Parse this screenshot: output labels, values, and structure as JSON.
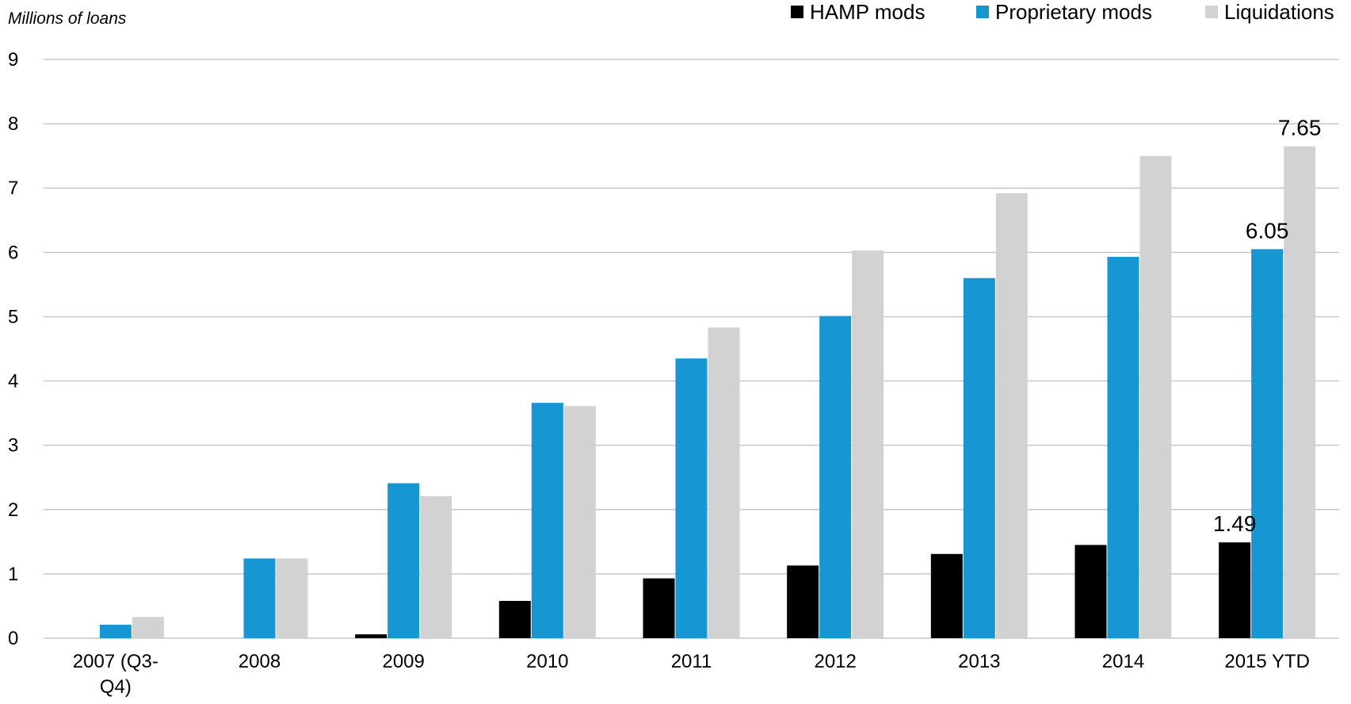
{
  "chart_data": {
    "type": "bar",
    "ylabel": "Millions of loans",
    "xlabel": "",
    "title": "",
    "ylim": [
      0,
      9
    ],
    "yticks": [
      0,
      1,
      2,
      3,
      4,
      5,
      6,
      7,
      8,
      9
    ],
    "grid": true,
    "legend_position": "top-right",
    "categories": [
      "2007 (Q3-Q4)",
      "2008",
      "2009",
      "2010",
      "2011",
      "2012",
      "2013",
      "2014",
      "2015 YTD"
    ],
    "category_lines": [
      [
        "2007 (Q3-",
        "Q4)"
      ],
      [
        "2008"
      ],
      [
        "2009"
      ],
      [
        "2010"
      ],
      [
        "2011"
      ],
      [
        "2012"
      ],
      [
        "2013"
      ],
      [
        "2014"
      ],
      [
        "2015 YTD"
      ]
    ],
    "series": [
      {
        "name": "HAMP mods",
        "color": "#000000",
        "values": [
          0,
          0,
          0.06,
          0.58,
          0.93,
          1.13,
          1.31,
          1.45,
          1.49
        ]
      },
      {
        "name": "Proprietary mods",
        "color": "#1696d2",
        "values": [
          0.21,
          1.24,
          2.41,
          3.66,
          4.35,
          5.01,
          5.6,
          5.93,
          6.05
        ]
      },
      {
        "name": "Liquidations",
        "color": "#d2d2d2",
        "values": [
          0.33,
          1.24,
          2.21,
          3.61,
          4.83,
          6.03,
          6.92,
          7.5,
          7.65
        ]
      }
    ],
    "data_labels": [
      {
        "series": 0,
        "category": 8,
        "text": "1.49"
      },
      {
        "series": 1,
        "category": 8,
        "text": "6.05"
      },
      {
        "series": 2,
        "category": 8,
        "text": "7.65"
      }
    ]
  }
}
